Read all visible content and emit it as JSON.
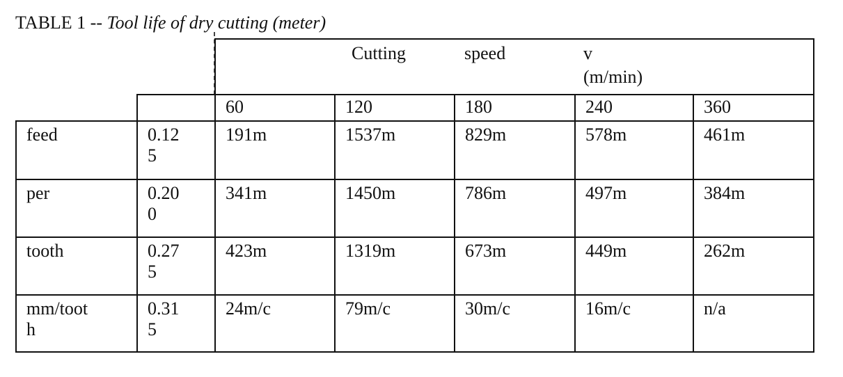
{
  "title": {
    "label": "TABLE 1 --",
    "caption": "Tool life of dry cutting (meter)"
  },
  "table": {
    "header": [
      "Cutting",
      "speed",
      "v",
      "(m/min)"
    ],
    "speeds": [
      "60",
      "120",
      "180",
      "240",
      "360"
    ],
    "rows": [
      [
        "feed",
        "0.125",
        "191m",
        "1537m",
        "829m",
        "578m",
        "461m"
      ],
      [
        "per",
        "0.200",
        "341m",
        "1450m",
        "786m",
        "497m",
        "384m"
      ],
      [
        "tooth",
        "0.275",
        "423m",
        "1319m",
        "673m",
        "449m",
        "262m"
      ],
      [
        "mm/tooth",
        "0.315",
        "24m/c",
        "79m/c",
        "30m/c",
        "16m/c",
        "n/a"
      ]
    ]
  }
}
